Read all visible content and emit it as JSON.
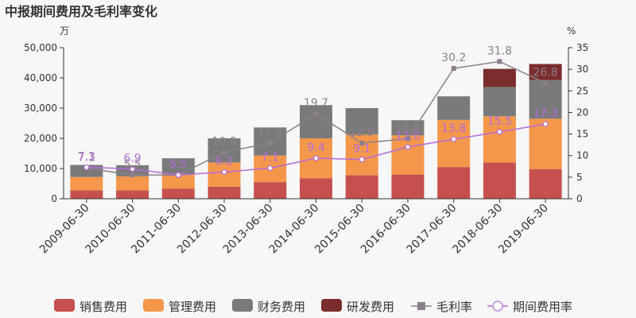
{
  "chart_data": {
    "type": "bar",
    "title": "中报期间费用及毛利率变化",
    "y_left_unit": "万",
    "y_right_unit": "%",
    "categories": [
      "2009-06-30",
      "2010-06-30",
      "2011-06-30",
      "2012-06-30",
      "2013-06-30",
      "2014-06-30",
      "2015-06-30",
      "2016-06-30",
      "2017-06-30",
      "2018-06-30",
      "2019-06-30"
    ],
    "ylim_left": [
      0,
      50000
    ],
    "yticks_left": [
      0,
      10000,
      20000,
      30000,
      40000,
      50000
    ],
    "ytick_labels_left": [
      "0",
      "10,000",
      "20,000",
      "30,000",
      "40,000",
      "50,000"
    ],
    "ylim_right": [
      0,
      35
    ],
    "yticks_right": [
      0,
      5,
      10,
      15,
      20,
      25,
      30,
      35
    ],
    "series": [
      {
        "name": "销售费用",
        "kind": "bar",
        "color": "#c6504e",
        "values": [
          2800,
          2800,
          3300,
          4000,
          5500,
          6800,
          7800,
          8000,
          10500,
          12000,
          9800
        ]
      },
      {
        "name": "管理费用",
        "kind": "bar",
        "color": "#f4974a",
        "values": [
          4400,
          4600,
          4900,
          8000,
          8800,
          13200,
          13500,
          13000,
          15600,
          15300,
          16700
        ]
      },
      {
        "name": "财务费用",
        "kind": "bar",
        "color": "#7a7a7a",
        "values": [
          4000,
          3700,
          5200,
          8000,
          9300,
          11000,
          8700,
          5000,
          7800,
          9700,
          12800
        ]
      },
      {
        "name": "研发费用",
        "kind": "bar",
        "color": "#7b2c2c",
        "values": [
          0,
          0,
          0,
          0,
          0,
          0,
          0,
          0,
          0,
          6000,
          5300
        ]
      },
      {
        "name": "毛利率",
        "kind": "line",
        "axis": "right",
        "color": "#8c7f8c",
        "marker": "square",
        "values": [
          7.1,
          5.5,
          5.5,
          10.8,
          12.9,
          19.7,
          12.9,
          13.9,
          30.2,
          31.8,
          26.8
        ],
        "labels": [
          "7.1",
          "5.5",
          "",
          "10.8",
          "12.9",
          "19.7",
          "12.9",
          "13.9",
          "30.2",
          "31.8",
          "26.8"
        ]
      },
      {
        "name": "期间费用率",
        "kind": "line",
        "axis": "right",
        "color": "#b36cd9",
        "marker": "circle",
        "values": [
          7.3,
          6.9,
          5.5,
          6.2,
          7.1,
          9.4,
          9.1,
          12.0,
          13.8,
          15.5,
          17.3
        ],
        "labels": [
          "7.3",
          "6.9",
          "5.5",
          "6.2",
          "7.1",
          "9.4",
          "9.1",
          "12.0",
          "13.8",
          "15.5",
          "17.3"
        ]
      }
    ],
    "legend_position": "bottom"
  }
}
